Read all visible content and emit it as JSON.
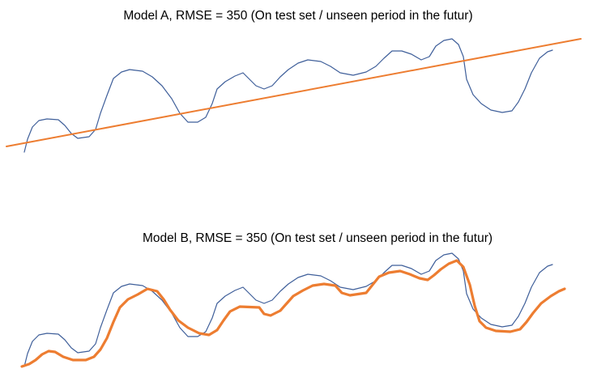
{
  "panels": [
    {
      "title": "Model A, RMSE = 350 (On test set / unseen period in the futur)"
    },
    {
      "title": "Model B, RMSE = 350 (On test set / unseen period in the futur)"
    }
  ]
}
